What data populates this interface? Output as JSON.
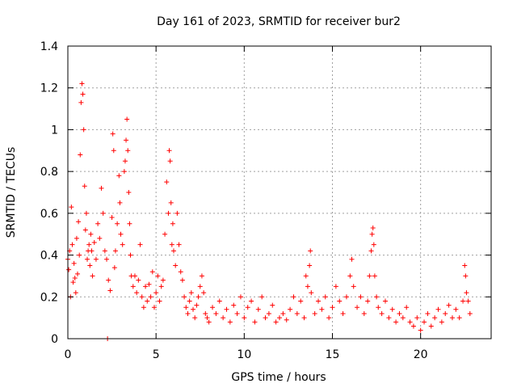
{
  "chart_data": {
    "type": "scatter",
    "title": "Day 161 of 2023, SRMTID for receiver bur2",
    "xlabel": "GPS time / hours",
    "ylabel": "SRMTID / TECUs",
    "xlim": [
      0,
      24
    ],
    "ylim": [
      0,
      1.4
    ],
    "xticks": [
      0,
      5,
      10,
      15,
      20
    ],
    "yticks": [
      0,
      0.2,
      0.4,
      0.6,
      0.8,
      1,
      1.2,
      1.4
    ],
    "xtick_labels": [
      "0",
      "5",
      "10",
      "15",
      "20"
    ],
    "ytick_labels": [
      "0",
      "0.2",
      "0.4",
      "0.6",
      "0.8",
      "1",
      "1.2",
      "1.4"
    ],
    "grid": true,
    "marker": "+",
    "marker_color": "#ff0000",
    "series": [
      {
        "name": "bur2",
        "points": [
          [
            0.0,
            0.38
          ],
          [
            0.05,
            0.33
          ],
          [
            0.1,
            0.42
          ],
          [
            0.15,
            0.2
          ],
          [
            0.2,
            0.63
          ],
          [
            0.25,
            0.45
          ],
          [
            0.3,
            0.27
          ],
          [
            0.35,
            0.36
          ],
          [
            0.4,
            0.29
          ],
          [
            0.45,
            0.22
          ],
          [
            0.5,
            0.48
          ],
          [
            0.55,
            0.31
          ],
          [
            0.6,
            0.56
          ],
          [
            0.65,
            0.4
          ],
          [
            0.7,
            0.88
          ],
          [
            0.75,
            1.13
          ],
          [
            0.8,
            1.22
          ],
          [
            0.85,
            1.17
          ],
          [
            0.9,
            1.0
          ],
          [
            0.95,
            0.73
          ],
          [
            1.0,
            0.52
          ],
          [
            1.05,
            0.6
          ],
          [
            1.1,
            0.38
          ],
          [
            1.15,
            0.42
          ],
          [
            1.2,
            0.45
          ],
          [
            1.25,
            0.35
          ],
          [
            1.3,
            0.5
          ],
          [
            1.35,
            0.42
          ],
          [
            1.4,
            0.3
          ],
          [
            1.5,
            0.46
          ],
          [
            1.6,
            0.38
          ],
          [
            1.7,
            0.55
          ],
          [
            1.8,
            0.48
          ],
          [
            1.9,
            0.72
          ],
          [
            2.0,
            0.6
          ],
          [
            2.1,
            0.42
          ],
          [
            2.2,
            0.38
          ],
          [
            2.25,
            0.0
          ],
          [
            2.3,
            0.28
          ],
          [
            2.4,
            0.23
          ],
          [
            2.5,
            0.58
          ],
          [
            2.55,
            0.98
          ],
          [
            2.6,
            0.9
          ],
          [
            2.65,
            0.34
          ],
          [
            2.7,
            0.42
          ],
          [
            2.8,
            0.55
          ],
          [
            2.9,
            0.78
          ],
          [
            2.95,
            0.65
          ],
          [
            3.0,
            0.5
          ],
          [
            3.1,
            0.45
          ],
          [
            3.2,
            0.8
          ],
          [
            3.25,
            0.85
          ],
          [
            3.3,
            0.95
          ],
          [
            3.35,
            1.05
          ],
          [
            3.4,
            0.9
          ],
          [
            3.45,
            0.7
          ],
          [
            3.5,
            0.55
          ],
          [
            3.55,
            0.4
          ],
          [
            3.6,
            0.3
          ],
          [
            3.7,
            0.25
          ],
          [
            3.8,
            0.3
          ],
          [
            3.9,
            0.22
          ],
          [
            4.0,
            0.28
          ],
          [
            4.1,
            0.45
          ],
          [
            4.2,
            0.2
          ],
          [
            4.3,
            0.15
          ],
          [
            4.4,
            0.25
          ],
          [
            4.5,
            0.18
          ],
          [
            4.6,
            0.26
          ],
          [
            4.7,
            0.2
          ],
          [
            4.8,
            0.32
          ],
          [
            4.9,
            0.15
          ],
          [
            5.0,
            0.22
          ],
          [
            5.1,
            0.3
          ],
          [
            5.2,
            0.18
          ],
          [
            5.3,
            0.25
          ],
          [
            5.4,
            0.28
          ],
          [
            5.5,
            0.5
          ],
          [
            5.6,
            0.75
          ],
          [
            5.7,
            0.6
          ],
          [
            5.75,
            0.9
          ],
          [
            5.8,
            0.85
          ],
          [
            5.85,
            0.65
          ],
          [
            5.9,
            0.45
          ],
          [
            5.95,
            0.55
          ],
          [
            6.0,
            0.42
          ],
          [
            6.1,
            0.35
          ],
          [
            6.2,
            0.6
          ],
          [
            6.3,
            0.45
          ],
          [
            6.4,
            0.32
          ],
          [
            6.5,
            0.28
          ],
          [
            6.6,
            0.2
          ],
          [
            6.7,
            0.15
          ],
          [
            6.8,
            0.12
          ],
          [
            6.9,
            0.18
          ],
          [
            7.0,
            0.22
          ],
          [
            7.1,
            0.14
          ],
          [
            7.2,
            0.1
          ],
          [
            7.3,
            0.16
          ],
          [
            7.4,
            0.2
          ],
          [
            7.5,
            0.25
          ],
          [
            7.6,
            0.3
          ],
          [
            7.7,
            0.22
          ],
          [
            7.8,
            0.12
          ],
          [
            7.9,
            0.1
          ],
          [
            8.0,
            0.08
          ],
          [
            8.2,
            0.15
          ],
          [
            8.4,
            0.12
          ],
          [
            8.6,
            0.18
          ],
          [
            8.8,
            0.1
          ],
          [
            9.0,
            0.14
          ],
          [
            9.2,
            0.08
          ],
          [
            9.4,
            0.16
          ],
          [
            9.6,
            0.12
          ],
          [
            9.8,
            0.2
          ],
          [
            10.0,
            0.1
          ],
          [
            10.2,
            0.15
          ],
          [
            10.4,
            0.18
          ],
          [
            10.6,
            0.08
          ],
          [
            10.8,
            0.14
          ],
          [
            11.0,
            0.2
          ],
          [
            11.2,
            0.1
          ],
          [
            11.4,
            0.12
          ],
          [
            11.6,
            0.16
          ],
          [
            11.8,
            0.08
          ],
          [
            12.0,
            0.1
          ],
          [
            12.2,
            0.12
          ],
          [
            12.4,
            0.09
          ],
          [
            12.6,
            0.14
          ],
          [
            12.8,
            0.2
          ],
          [
            13.0,
            0.12
          ],
          [
            13.2,
            0.18
          ],
          [
            13.4,
            0.1
          ],
          [
            13.5,
            0.3
          ],
          [
            13.6,
            0.25
          ],
          [
            13.7,
            0.35
          ],
          [
            13.75,
            0.42
          ],
          [
            13.8,
            0.22
          ],
          [
            14.0,
            0.12
          ],
          [
            14.2,
            0.18
          ],
          [
            14.4,
            0.14
          ],
          [
            14.6,
            0.2
          ],
          [
            14.8,
            0.1
          ],
          [
            15.0,
            0.15
          ],
          [
            15.2,
            0.25
          ],
          [
            15.4,
            0.18
          ],
          [
            15.6,
            0.12
          ],
          [
            15.8,
            0.2
          ],
          [
            16.0,
            0.3
          ],
          [
            16.1,
            0.38
          ],
          [
            16.2,
            0.25
          ],
          [
            16.4,
            0.15
          ],
          [
            16.6,
            0.2
          ],
          [
            16.8,
            0.12
          ],
          [
            17.0,
            0.18
          ],
          [
            17.1,
            0.3
          ],
          [
            17.2,
            0.42
          ],
          [
            17.25,
            0.5
          ],
          [
            17.3,
            0.53
          ],
          [
            17.35,
            0.45
          ],
          [
            17.4,
            0.3
          ],
          [
            17.5,
            0.2
          ],
          [
            17.6,
            0.15
          ],
          [
            17.8,
            0.12
          ],
          [
            18.0,
            0.18
          ],
          [
            18.2,
            0.1
          ],
          [
            18.4,
            0.14
          ],
          [
            18.6,
            0.08
          ],
          [
            18.8,
            0.12
          ],
          [
            19.0,
            0.1
          ],
          [
            19.2,
            0.15
          ],
          [
            19.4,
            0.08
          ],
          [
            19.6,
            0.06
          ],
          [
            19.8,
            0.1
          ],
          [
            20.0,
            0.04
          ],
          [
            20.2,
            0.08
          ],
          [
            20.4,
            0.12
          ],
          [
            20.6,
            0.06
          ],
          [
            20.8,
            0.1
          ],
          [
            21.0,
            0.14
          ],
          [
            21.2,
            0.08
          ],
          [
            21.4,
            0.12
          ],
          [
            21.6,
            0.16
          ],
          [
            21.8,
            0.1
          ],
          [
            22.0,
            0.14
          ],
          [
            22.2,
            0.1
          ],
          [
            22.4,
            0.18
          ],
          [
            22.5,
            0.35
          ],
          [
            22.55,
            0.3
          ],
          [
            22.6,
            0.22
          ],
          [
            22.7,
            0.18
          ],
          [
            22.8,
            0.12
          ]
        ]
      }
    ]
  }
}
